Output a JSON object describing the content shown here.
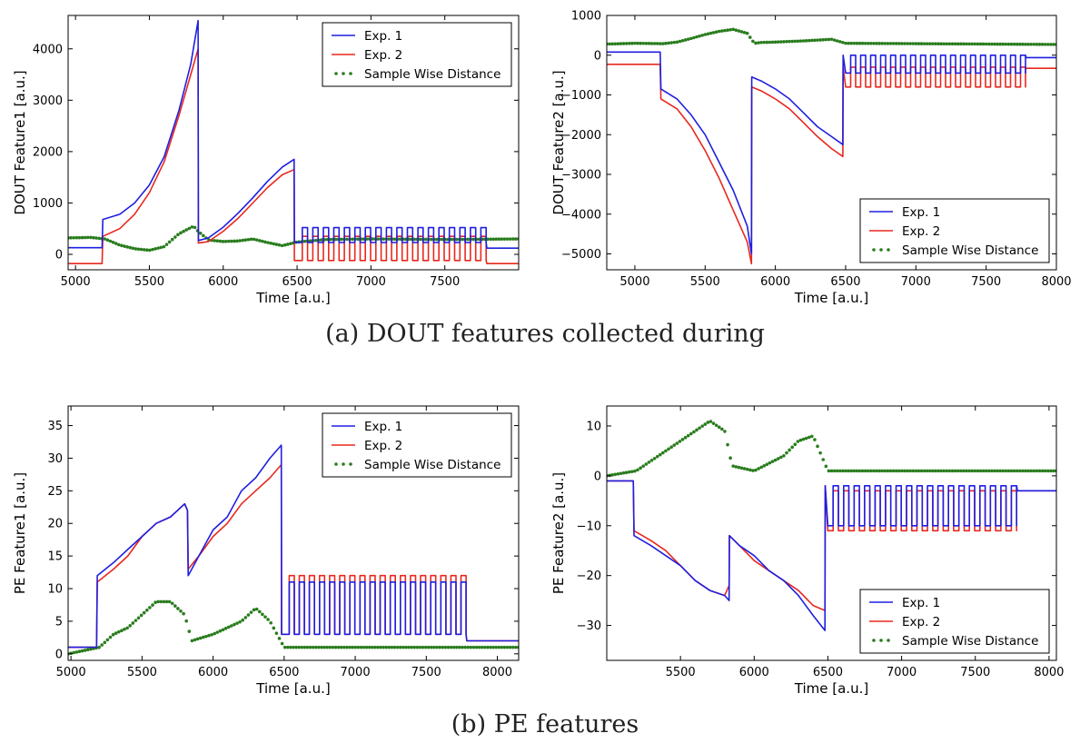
{
  "captions": {
    "a": "(a) DOUT features collected during",
    "b": "(b) PE features"
  },
  "colors": {
    "exp1": "#1f1fe0",
    "exp2": "#e8281e",
    "distance": "#2a7d1e"
  },
  "chart_data": [
    {
      "type": "line",
      "ylabel": "DOUT Feature1 [a.u.]",
      "xlabel": "Time [a.u.]",
      "xlim": [
        4950,
        8000
      ],
      "ylim": [
        -300,
        4650
      ],
      "xticks": [
        5000,
        5500,
        6000,
        6500,
        7000,
        7500
      ],
      "yticks": [
        0,
        1000,
        2000,
        3000,
        4000
      ],
      "legend": {
        "position": "top-right",
        "entries": [
          "Exp. 1",
          "Exp. 2",
          "Sample Wise Distance"
        ]
      },
      "series": [
        {
          "name": "Exp. 1",
          "style": "line",
          "color": "#1f1fe0",
          "x": [
            4950,
            5180,
            5185,
            5300,
            5400,
            5500,
            5600,
            5700,
            5780,
            5830,
            5832,
            5900,
            6000,
            6100,
            6200,
            6300,
            6400,
            6480,
            6482,
            7000,
            7400,
            7500,
            7780,
            7785,
            8000
          ],
          "y": [
            130,
            130,
            680,
            780,
            1000,
            1350,
            1900,
            2800,
            3700,
            4550,
            270,
            320,
            530,
            800,
            1100,
            1420,
            1700,
            1850,
            230,
            230,
            230,
            230,
            230,
            120,
            120
          ]
        },
        {
          "name": "Exp. 2",
          "style": "line",
          "color": "#e8281e",
          "x": [
            4950,
            5180,
            5185,
            5300,
            5400,
            5500,
            5600,
            5700,
            5780,
            5830,
            5832,
            5900,
            6000,
            6100,
            6200,
            6300,
            6400,
            6480,
            6482,
            7000,
            7400,
            7500,
            7780,
            7785,
            8000
          ],
          "y": [
            -180,
            -180,
            350,
            500,
            780,
            1200,
            1800,
            2700,
            3500,
            4000,
            220,
            250,
            450,
            700,
            1000,
            1300,
            1550,
            1650,
            -120,
            -120,
            -120,
            -120,
            -120,
            -180,
            -180
          ]
        },
        {
          "name": "Sample Wise Distance",
          "style": "dots",
          "color": "#2a7d1e",
          "x": [
            4950,
            5100,
            5200,
            5300,
            5400,
            5500,
            5600,
            5700,
            5800,
            5830,
            5900,
            6000,
            6100,
            6200,
            6300,
            6400,
            6500,
            6700,
            7000,
            7500,
            8000
          ],
          "y": [
            320,
            330,
            300,
            180,
            110,
            80,
            150,
            400,
            550,
            450,
            280,
            250,
            260,
            300,
            230,
            170,
            240,
            290,
            300,
            290,
            300
          ]
        }
      ],
      "square_wave": {
        "x_start": 6500,
        "x_end": 7780,
        "cycles": 18,
        "exp1": [
          230,
          520
        ],
        "exp2": [
          -120,
          350
        ]
      }
    },
    {
      "type": "line",
      "ylabel": "DOUT Feature2 [a.u.]",
      "xlabel": "Time [a.u.]",
      "xlim": [
        4800,
        8000
      ],
      "ylim": [
        -5400,
        1000
      ],
      "xticks": [
        5000,
        5500,
        6000,
        6500,
        7000,
        7500,
        8000
      ],
      "yticks": [
        1000,
        0,
        -1000,
        -2000,
        -3000,
        -4000,
        -5000
      ],
      "legend": {
        "position": "bottom-right",
        "entries": [
          "Exp. 1",
          "Exp. 2",
          "Sample Wise Distance"
        ]
      },
      "series": [
        {
          "name": "Exp. 1",
          "style": "line",
          "color": "#1f1fe0",
          "x": [
            4800,
            5180,
            5185,
            5300,
            5400,
            5500,
            5600,
            5700,
            5800,
            5830,
            5832,
            5900,
            6000,
            6100,
            6200,
            6300,
            6400,
            6480,
            6482,
            7000,
            7500,
            7780,
            7785,
            8000
          ],
          "y": [
            80,
            80,
            -850,
            -1100,
            -1500,
            -2000,
            -2700,
            -3400,
            -4300,
            -5000,
            -550,
            -650,
            -850,
            -1100,
            -1450,
            -1800,
            -2050,
            -2250,
            0,
            0,
            0,
            0,
            -60,
            -60
          ]
        },
        {
          "name": "Exp. 2",
          "style": "line",
          "color": "#e8281e",
          "x": [
            4800,
            5180,
            5185,
            5300,
            5400,
            5500,
            5600,
            5700,
            5800,
            5830,
            5832,
            5900,
            6000,
            6100,
            6200,
            6300,
            6400,
            6480,
            6482,
            7000,
            7500,
            7780,
            7785,
            8000
          ],
          "y": [
            -230,
            -230,
            -1100,
            -1350,
            -1800,
            -2400,
            -3100,
            -3900,
            -4700,
            -5250,
            -800,
            -900,
            -1100,
            -1350,
            -1700,
            -2050,
            -2350,
            -2550,
            -300,
            -300,
            -300,
            -300,
            -330,
            -330
          ]
        },
        {
          "name": "Sample Wise Distance",
          "style": "dots",
          "color": "#2a7d1e",
          "x": [
            4800,
            5000,
            5200,
            5300,
            5400,
            5500,
            5600,
            5700,
            5800,
            5850,
            5900,
            6000,
            6200,
            6400,
            6500,
            7000,
            7500,
            8000
          ],
          "y": [
            280,
            300,
            290,
            330,
            420,
            520,
            600,
            650,
            550,
            300,
            320,
            330,
            360,
            400,
            300,
            290,
            280,
            270
          ]
        }
      ],
      "square_wave": {
        "x_start": 6500,
        "x_end": 7780,
        "cycles": 18,
        "exp1": [
          -450,
          0
        ],
        "exp2": [
          -800,
          -300
        ]
      }
    },
    {
      "type": "line",
      "ylabel": "PE Feature1 [a.u.]",
      "xlabel": "Time [a.u.]",
      "xlim": [
        4980,
        8150
      ],
      "ylim": [
        -1,
        38
      ],
      "xticks": [
        5000,
        5500,
        6000,
        6500,
        7000,
        7500,
        8000
      ],
      "yticks": [
        0,
        5,
        10,
        15,
        20,
        25,
        30,
        35
      ],
      "legend": {
        "position": "top-right",
        "entries": [
          "Exp. 1",
          "Exp. 2",
          "Sample Wise Distance"
        ]
      },
      "series": [
        {
          "name": "Exp. 1",
          "style": "line",
          "color": "#1f1fe0",
          "x": [
            4980,
            5180,
            5185,
            5300,
            5400,
            5500,
            5600,
            5700,
            5800,
            5820,
            5825,
            5900,
            6000,
            6100,
            6200,
            6300,
            6400,
            6480,
            6482,
            7000,
            7500,
            7780,
            7785,
            8150
          ],
          "y": [
            1,
            1,
            12,
            14,
            16,
            18,
            20,
            21,
            23,
            22,
            12,
            15,
            19,
            21,
            25,
            27,
            30,
            32,
            3,
            3,
            3,
            3,
            2,
            2
          ]
        },
        {
          "name": "Exp. 2",
          "style": "line",
          "color": "#e8281e",
          "x": [
            4980,
            5180,
            5185,
            5300,
            5400,
            5500,
            5600,
            5700,
            5800,
            5820,
            5825,
            5900,
            6000,
            6100,
            6200,
            6300,
            6400,
            6480,
            6482,
            7000,
            7500,
            7780,
            7785,
            8150
          ],
          "y": [
            1,
            1,
            11,
            13,
            15,
            18,
            20,
            21,
            23,
            22,
            13,
            15,
            18,
            20,
            23,
            25,
            27,
            29,
            3,
            3,
            3,
            3,
            2,
            2
          ]
        },
        {
          "name": "Sample Wise Distance",
          "style": "dots",
          "color": "#2a7d1e",
          "x": [
            4980,
            5200,
            5300,
            5400,
            5500,
            5600,
            5700,
            5800,
            5850,
            6000,
            6200,
            6300,
            6400,
            6500,
            7000,
            7500,
            8150
          ],
          "y": [
            0,
            1,
            3,
            4,
            6,
            8,
            8,
            6,
            2,
            3,
            5,
            7,
            5,
            1,
            1,
            1,
            1
          ]
        }
      ],
      "square_wave": {
        "x_start": 6500,
        "x_end": 7780,
        "cycles": 18,
        "exp1": [
          3,
          11
        ],
        "exp2": [
          3,
          12
        ]
      }
    },
    {
      "type": "line",
      "ylabel": "PE Feature2 [a.u.]",
      "xlabel": "Time [a.u.]",
      "xlim": [
        5000,
        8050
      ],
      "ylim": [
        -37,
        14
      ],
      "xticks": [
        5500,
        6000,
        6500,
        7000,
        7500,
        8000
      ],
      "yticks": [
        10,
        0,
        -10,
        -20,
        -30
      ],
      "legend": {
        "position": "bottom-right",
        "entries": [
          "Exp. 1",
          "Exp. 2",
          "Sample Wise Distance"
        ]
      },
      "series": [
        {
          "name": "Exp. 1",
          "style": "line",
          "color": "#1f1fe0",
          "x": [
            5000,
            5180,
            5185,
            5300,
            5400,
            5500,
            5600,
            5700,
            5800,
            5830,
            5832,
            5900,
            6000,
            6100,
            6200,
            6300,
            6400,
            6480,
            6482,
            7000,
            7500,
            7780,
            7785,
            8050
          ],
          "y": [
            -1,
            -1,
            -12,
            -14,
            -16,
            -18,
            -21,
            -23,
            -24,
            -25,
            -12,
            -14,
            -16,
            -19,
            -21,
            -24,
            -28,
            -31,
            -2,
            -2,
            -2,
            -2,
            -3,
            -3
          ]
        },
        {
          "name": "Exp. 2",
          "style": "line",
          "color": "#e8281e",
          "x": [
            5000,
            5180,
            5185,
            5300,
            5400,
            5500,
            5600,
            5700,
            5800,
            5830,
            5832,
            5900,
            6000,
            6100,
            6200,
            6300,
            6400,
            6480,
            6482,
            7000,
            7500,
            7780,
            7785,
            8050
          ],
          "y": [
            -1,
            -1,
            -11,
            -13,
            -15,
            -18,
            -21,
            -23,
            -24,
            -22,
            -12,
            -14,
            -17,
            -19,
            -21,
            -23,
            -26,
            -27,
            -2,
            -2,
            -2,
            -2,
            -3,
            -3
          ]
        },
        {
          "name": "Sample Wise Distance",
          "style": "dots",
          "color": "#2a7d1e",
          "x": [
            5000,
            5200,
            5300,
            5400,
            5500,
            5600,
            5700,
            5800,
            5850,
            6000,
            6200,
            6300,
            6400,
            6500,
            7000,
            7500,
            8050
          ],
          "y": [
            0,
            1,
            3,
            5,
            7,
            9,
            11,
            9,
            2,
            1,
            4,
            7,
            8,
            1,
            1,
            1,
            1
          ]
        }
      ],
      "square_wave": {
        "x_start": 6500,
        "x_end": 7780,
        "cycles": 18,
        "exp1": [
          -10,
          -2
        ],
        "exp2": [
          -11,
          -3
        ]
      }
    }
  ]
}
